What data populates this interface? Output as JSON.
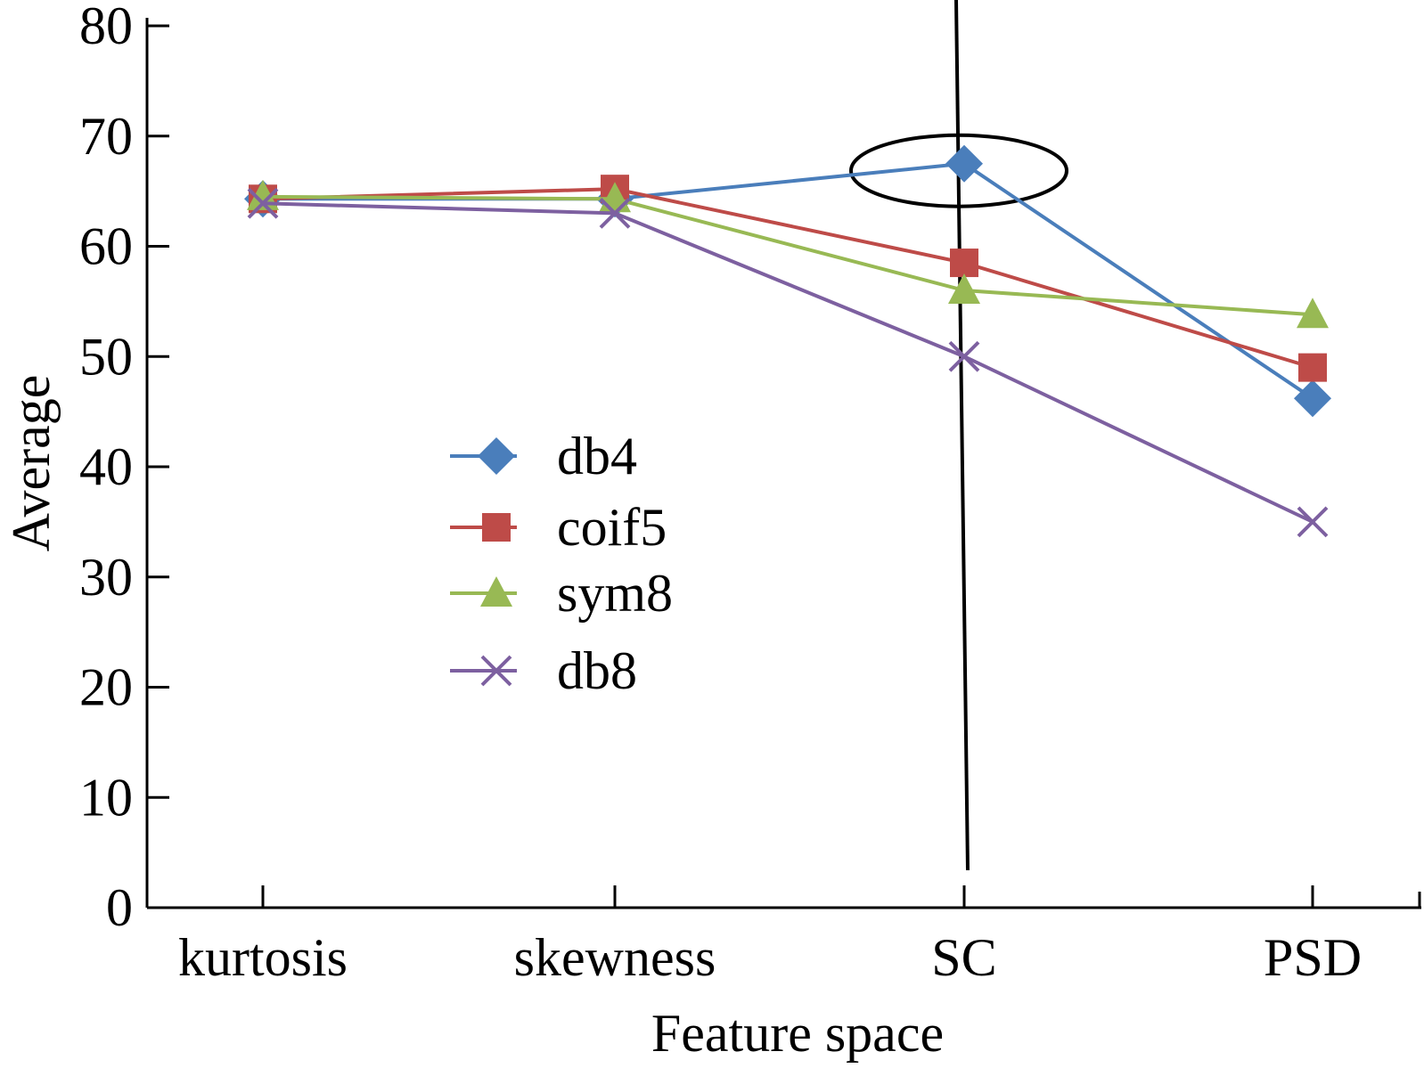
{
  "chart_data": {
    "type": "line",
    "xlabel": "Feature space",
    "ylabel": "Average",
    "categories": [
      "kurtosis",
      "skewness",
      "SC",
      "PSD"
    ],
    "ylim": [
      0,
      80
    ],
    "yticks": [
      0,
      10,
      20,
      30,
      40,
      50,
      60,
      70,
      80
    ],
    "grid": false,
    "legend_position": "center-left",
    "series": [
      {
        "name": "db4",
        "color": "#4a7ebb",
        "marker": "diamond",
        "values": [
          64.3,
          64.3,
          67.5,
          46.2
        ]
      },
      {
        "name": "coif5",
        "color": "#be4b48",
        "marker": "square",
        "values": [
          64.3,
          65.2,
          58.5,
          49.0
        ]
      },
      {
        "name": "sym8",
        "color": "#98b954",
        "marker": "triangle",
        "values": [
          64.5,
          64.3,
          56.0,
          53.8
        ]
      },
      {
        "name": "db8",
        "color": "#7d60a0",
        "marker": "x",
        "values": [
          63.9,
          63.0,
          50.0,
          35.0
        ]
      }
    ],
    "annotations": [
      {
        "type": "ellipse",
        "category": "SC",
        "series": "db4"
      },
      {
        "type": "vertical-line",
        "category": "SC"
      }
    ]
  }
}
